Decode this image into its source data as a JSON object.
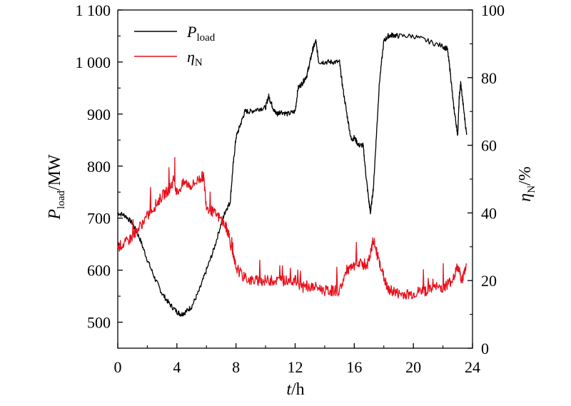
{
  "chart_data": {
    "type": "line",
    "xlabel": {
      "main": "t",
      "rest": "/h"
    },
    "ylabel_left": {
      "main": "P",
      "sub": "load",
      "rest": "/MW"
    },
    "ylabel_right": {
      "main": "η",
      "sub": "N",
      "rest": "/%"
    },
    "xlim": [
      0,
      24
    ],
    "ylim_left": [
      450,
      1100
    ],
    "ylim_right": [
      0,
      100
    ],
    "x_ticks": [
      0,
      4,
      8,
      12,
      16,
      20,
      24
    ],
    "x_tick_labels": [
      "0",
      "4",
      "8",
      "12",
      "16",
      "20",
      "24"
    ],
    "y_left_ticks": [
      500,
      600,
      700,
      800,
      900,
      1000,
      1100
    ],
    "y_left_tick_labels": [
      "500",
      "600",
      "700",
      "800",
      "900",
      "1 000",
      "1 100"
    ],
    "y_right_ticks": [
      0,
      20,
      40,
      60,
      80,
      100
    ],
    "y_right_tick_labels": [
      "0",
      "20",
      "40",
      "60",
      "80",
      "100"
    ],
    "grid": false,
    "legend_position": "top-left",
    "series": [
      {
        "name_main": "P",
        "name_sub": "load",
        "axis": "left",
        "color": "#000000",
        "x": [
          0,
          0.5,
          1,
          1.5,
          2,
          2.5,
          3,
          3.5,
          4,
          4.3,
          4.6,
          5,
          5.5,
          6,
          6.5,
          7,
          7.3,
          7.6,
          7.8,
          8,
          8.3,
          8.6,
          9,
          9.5,
          10,
          10.2,
          10.4,
          10.6,
          10.8,
          11,
          11.5,
          12,
          12.2,
          12.5,
          12.8,
          13,
          13.2,
          13.4,
          13.6,
          14,
          14.5,
          15,
          15.2,
          15.5,
          15.8,
          16,
          16.3,
          16.6,
          16.8,
          17,
          17.1,
          17.3,
          17.5,
          17.7,
          18,
          18.3,
          18.6,
          19,
          20,
          21,
          22,
          22.3,
          22.5,
          22.7,
          22.9,
          23,
          23.1,
          23.2,
          23.4,
          23.6
        ],
        "y": [
          710,
          705,
          690,
          660,
          620,
          585,
          555,
          535,
          520,
          515,
          520,
          530,
          560,
          600,
          640,
          690,
          715,
          730,
          800,
          855,
          880,
          905,
          905,
          910,
          912,
          935,
          920,
          905,
          900,
          905,
          900,
          905,
          950,
          960,
          975,
          1000,
          1025,
          1040,
          1000,
          1000,
          1000,
          1000,
          955,
          900,
          850,
          855,
          840,
          840,
          780,
          730,
          710,
          760,
          860,
          960,
          1040,
          1050,
          1052,
          1050,
          1050,
          1040,
          1030,
          1025,
          980,
          920,
          880,
          860,
          930,
          960,
          910,
          860
        ]
      },
      {
        "name_main": "η",
        "name_sub": "N",
        "axis": "right",
        "color": "#e8101c",
        "x": [
          0,
          0.5,
          1,
          1.5,
          2,
          2.5,
          3,
          3.5,
          3.8,
          4,
          4.5,
          5,
          5.5,
          5.8,
          6,
          6.5,
          7,
          7.3,
          7.5,
          7.8,
          8,
          8.5,
          9,
          9.5,
          10,
          10.5,
          11,
          11.5,
          12,
          12.5,
          13,
          13.5,
          14,
          14.5,
          15,
          15.5,
          16,
          16.5,
          16.8,
          17,
          17.3,
          17.6,
          18,
          18.3,
          18.6,
          19,
          19.5,
          20,
          20.5,
          21,
          21.5,
          22,
          22.3,
          22.6,
          23,
          23.3,
          23.6
        ],
        "y": [
          30,
          31,
          33,
          36,
          39,
          42,
          45,
          47,
          50,
          46,
          49,
          48,
          50,
          51,
          42,
          40,
          38,
          36,
          34,
          27,
          24,
          21,
          20,
          20,
          20,
          20,
          20,
          20,
          20,
          18,
          18,
          18,
          17,
          17,
          17,
          23,
          24,
          25,
          24,
          26,
          32,
          27,
          21,
          17,
          17,
          16,
          16,
          16,
          17,
          17,
          18,
          18,
          19,
          20,
          24,
          20,
          25
        ]
      }
    ]
  }
}
